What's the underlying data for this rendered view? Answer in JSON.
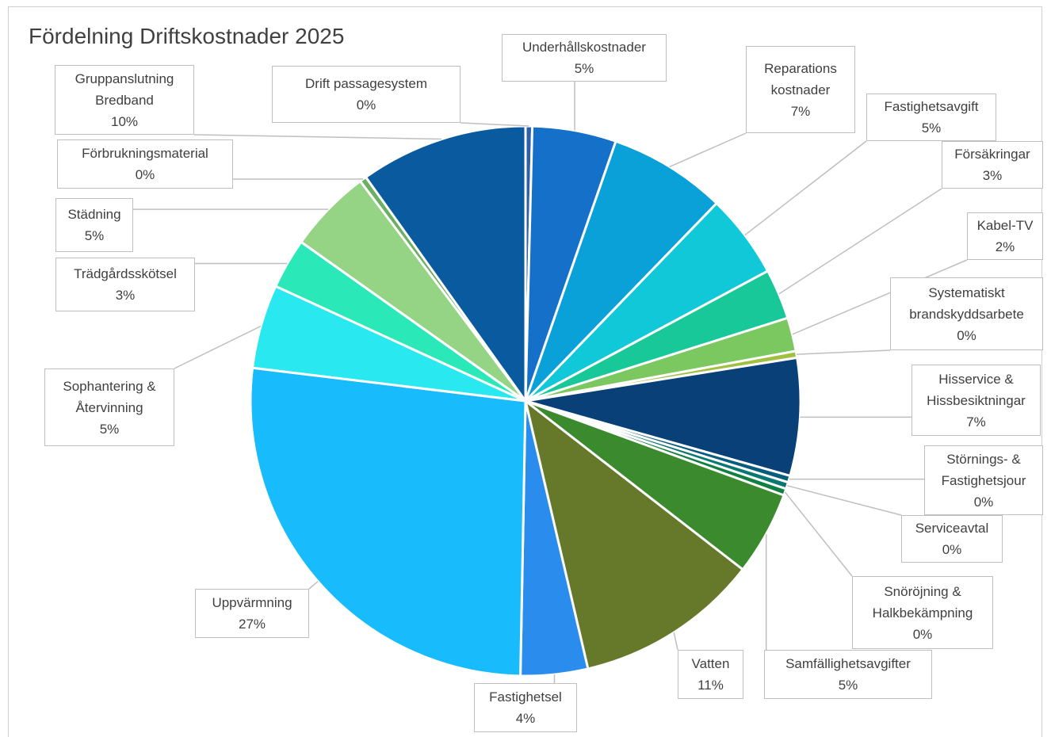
{
  "chart_data": {
    "type": "pie",
    "title": "Fördelning Driftskostnader 2025",
    "categories": [
      "Drift passagesystem",
      "Underhållskostnader",
      "Reparations kostnader",
      "Fastighetsavgift",
      "Försäkringar",
      "Kabel-TV",
      "Systematiskt brandskyddsarbete",
      "Hisservice & Hissbesiktningar",
      "Störnings- & Fastighetsjour",
      "Serviceavtal",
      "Snöröjning & Halkbekämpning",
      "Samfällighetsavgifter",
      "Vatten",
      "Fastighetsel",
      "Uppvärmning",
      "Sophantering & Återvinning",
      "Trädgårdsskötsel",
      "Städning",
      "Förbrukningsmaterial",
      "Gruppanslutning Bredband"
    ],
    "values": [
      0.4,
      5,
      7,
      5,
      3,
      2,
      0.4,
      7,
      0.4,
      0.4,
      0.4,
      5,
      11,
      4,
      27,
      5,
      3,
      5,
      0.4,
      10
    ],
    "value_labels": [
      "0%",
      "5%",
      "7%",
      "5%",
      "3%",
      "2%",
      "0%",
      "7%",
      "0%",
      "0%",
      "0%",
      "5%",
      "11%",
      "4%",
      "27%",
      "5%",
      "3%",
      "5%",
      "0%",
      "10%"
    ],
    "colors": [
      "#2e5fa8",
      "#1470c8",
      "#0aa0d8",
      "#10c8d8",
      "#18c898",
      "#7cc860",
      "#a0c040",
      "#0a4078",
      "#0a5c7c",
      "#0a7870",
      "#108040",
      "#3c8a2e",
      "#66782a",
      "#2a8cec",
      "#18bcfc",
      "#2ae8f0",
      "#2ae8b8",
      "#94d484",
      "#6ab060",
      "#0a5aa0"
    ]
  }
}
